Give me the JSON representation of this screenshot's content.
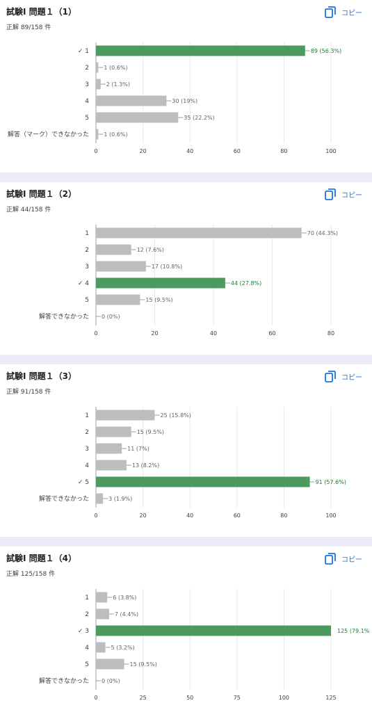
{
  "copy_label": "コピー",
  "colors": {
    "correct": "#4c9a5f",
    "other": "#bdbdbd",
    "grid": "#e8e8e8",
    "correct_text": "#1e7b34",
    "other_text": "#5f6368"
  },
  "cards": [
    {
      "title": "試験Ⅰ 問題１（1）",
      "subtitle": "正解 89/158 件",
      "chart_data": {
        "type": "bar",
        "orientation": "horizontal",
        "categories": [
          "✓ 1",
          "2",
          "3",
          "4",
          "5",
          "解答（マーク）できなかった"
        ],
        "values": [
          89,
          1,
          2,
          30,
          35,
          1
        ],
        "data_labels": [
          "89 (56.3%)",
          "1 (0.6%)",
          "2 (1.3%)",
          "30 (19%)",
          "35 (22.2%)",
          "1 (0.6%)"
        ],
        "correct_index": 0,
        "xlim": [
          0,
          100
        ],
        "xticks": [
          0,
          20,
          40,
          60,
          80,
          100
        ],
        "grid": true
      }
    },
    {
      "title": "試験Ⅰ 問題１（2）",
      "subtitle": "正解 44/158 件",
      "chart_data": {
        "type": "bar",
        "orientation": "horizontal",
        "categories": [
          "1",
          "2",
          "3",
          "✓ 4",
          "5",
          "解答できなかった"
        ],
        "values": [
          70,
          12,
          17,
          44,
          15,
          0
        ],
        "data_labels": [
          "70 (44.3%)",
          "12 (7.6%)",
          "17 (10.8%)",
          "44 (27.8%)",
          "15 (9.5%)",
          "0 (0%)"
        ],
        "correct_index": 3,
        "xlim": [
          0,
          80
        ],
        "xticks": [
          0,
          20,
          40,
          60,
          80
        ],
        "grid": true
      }
    },
    {
      "title": "試験Ⅰ 問題１（3）",
      "subtitle": "正解 91/158 件",
      "chart_data": {
        "type": "bar",
        "orientation": "horizontal",
        "categories": [
          "1",
          "2",
          "3",
          "4",
          "✓ 5",
          "解答できなかった"
        ],
        "values": [
          25,
          15,
          11,
          13,
          91,
          3
        ],
        "data_labels": [
          "25 (15.8%)",
          "15 (9.5%)",
          "11 (7%)",
          "13 (8.2%)",
          "91 (57.6%)",
          "3 (1.9%)"
        ],
        "correct_index": 4,
        "xlim": [
          0,
          100
        ],
        "xticks": [
          0,
          20,
          40,
          60,
          80,
          100
        ],
        "grid": true
      }
    },
    {
      "title": "試験Ⅰ 問題１（4）",
      "subtitle": "正解 125/158 件",
      "chart_data": {
        "type": "bar",
        "orientation": "horizontal",
        "categories": [
          "1",
          "2",
          "✓ 3",
          "4",
          "5",
          "解答できなかった"
        ],
        "values": [
          6,
          7,
          125,
          5,
          15,
          0
        ],
        "data_labels": [
          "6 (3.8%)",
          "7 (4.4%)",
          "125 (79.1%",
          "5 (3.2%)",
          "15 (9.5%)",
          "0 (0%)"
        ],
        "correct_index": 2,
        "xlim": [
          0,
          125
        ],
        "xticks": [
          0,
          25,
          50,
          75,
          100,
          125
        ],
        "grid": true
      }
    }
  ]
}
